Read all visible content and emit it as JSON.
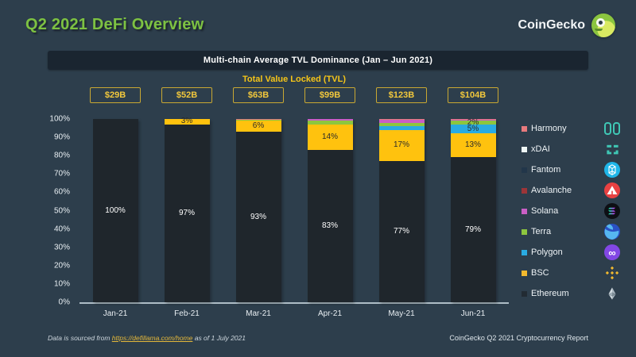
{
  "page": {
    "title": "Q2 2021 DeFi Overview",
    "brand": "CoinGecko",
    "footer_left_prefix": "Data is sourced from ",
    "footer_link": "https://defillama.com/home",
    "footer_left_suffix": " as of 1 July 2021",
    "footer_right": "CoinGecko Q2 2021 Cryptocurrency Report"
  },
  "colors": {
    "background": "#2d3e4c",
    "panel": "#1a2530",
    "title_green": "#7dc242",
    "accent_yellow": "#f2c83c",
    "axis_line": "#aebdc6"
  },
  "chart_data": {
    "type": "stacked-bar",
    "title": "Multi-chain Average TVL Dominance (Jan – Jun 2021)",
    "subtitle": "Total Value Locked (TVL)",
    "categories": [
      "Jan-21",
      "Feb-21",
      "Mar-21",
      "Apr-21",
      "May-21",
      "Jun-21"
    ],
    "tvl_totals": [
      "$29B",
      "$52B",
      "$63B",
      "$99B",
      "$123B",
      "$104B"
    ],
    "y_ticks": [
      "0%",
      "10%",
      "20%",
      "30%",
      "40%",
      "50%",
      "60%",
      "70%",
      "80%",
      "90%",
      "100%"
    ],
    "ylim": [
      0,
      100
    ],
    "grid": false,
    "legend_position": "right",
    "series": [
      {
        "name": "Ethereum",
        "color": "#1f262c",
        "label_color": "#ffffff",
        "values": [
          100,
          97,
          93,
          83,
          77,
          79
        ],
        "labels": [
          "100%",
          "97%",
          "93%",
          "83%",
          "77%",
          "79%"
        ]
      },
      {
        "name": "BSC",
        "color": "#ffc20e",
        "label_color": "#2a2a2a",
        "values": [
          0,
          3,
          6,
          14,
          17,
          13
        ],
        "labels": [
          "",
          "3%",
          "6%",
          "14%",
          "17%",
          "13%"
        ]
      },
      {
        "name": "Polygon",
        "color": "#29abe2",
        "label_color": "#2a2a2a",
        "values": [
          0,
          0,
          0,
          0,
          2,
          5
        ],
        "labels": [
          "",
          "",
          "",
          "",
          "",
          "5%"
        ]
      },
      {
        "name": "Terra",
        "color": "#8dc63f",
        "label_color": "#2a2a2a",
        "values": [
          0,
          0,
          0.6,
          2,
          2,
          2
        ],
        "labels": [
          "",
          "",
          "",
          "",
          "",
          "2%"
        ]
      },
      {
        "name": "Solana",
        "color": "#c95fc5",
        "label_color": "#2a2a2a",
        "values": [
          0,
          0,
          0,
          1,
          1.5,
          0.6
        ],
        "labels": [
          "",
          "",
          "",
          "",
          "",
          ""
        ]
      },
      {
        "name": "Harmony",
        "color": "#e87a7d",
        "label_color": "#2a2a2a",
        "values": [
          0,
          0,
          0.4,
          0,
          0.5,
          0.4
        ],
        "labels": [
          "",
          "",
          "",
          "",
          "",
          ""
        ]
      }
    ]
  },
  "legend": {
    "items": [
      {
        "label": "Harmony",
        "swatch": "#e87a7d",
        "icon": "harmony-logo-icon"
      },
      {
        "label": "xDAI",
        "swatch": "#eef7f5",
        "icon": "xdai-logo-icon"
      },
      {
        "label": "Fantom",
        "swatch": "#22364a",
        "icon": "fantom-logo-icon"
      },
      {
        "label": "Avalanche",
        "swatch": "#9c3538",
        "icon": "avalanche-logo-icon"
      },
      {
        "label": "Solana",
        "swatch": "#c95fc5",
        "icon": "solana-logo-icon"
      },
      {
        "label": "Terra",
        "swatch": "#8dc63f",
        "icon": "terra-logo-icon"
      },
      {
        "label": "Polygon",
        "swatch": "#29abe2",
        "icon": "polygon-logo-icon"
      },
      {
        "label": "BSC",
        "swatch": "#f3ba2f",
        "icon": "bsc-logo-icon"
      },
      {
        "label": "Ethereum",
        "swatch": "#222b33",
        "icon": "ethereum-logo-icon"
      }
    ]
  }
}
